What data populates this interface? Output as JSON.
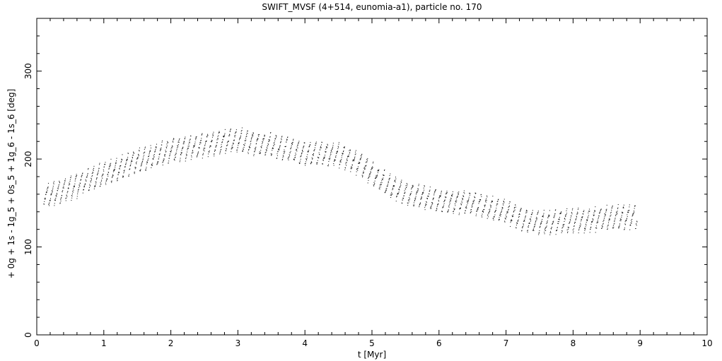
{
  "chart_data": {
    "type": "scatter",
    "title": "SWIFT_MVSF (4+514, eunomia-a1), particle no. 170",
    "xlabel": "t [Myr]",
    "ylabel": "+ 0g + 1s - 1g_5 + 0s_5 + 1g_6 - 1s_6 [deg]",
    "xlim": [
      0,
      10
    ],
    "ylim": [
      0,
      360
    ],
    "xticks": [
      "0",
      "1",
      "2",
      "3",
      "4",
      "5",
      "6",
      "7",
      "8",
      "9",
      "10"
    ],
    "yticks": [
      "0",
      "100",
      "200",
      "300"
    ],
    "grid": false,
    "marker_color": "#000000",
    "trend": {
      "x": [
        0.1,
        0.5,
        1.0,
        1.5,
        2.0,
        2.5,
        3.0,
        3.5,
        4.0,
        4.5,
        4.8,
        5.0,
        5.3,
        5.6,
        6.0,
        6.5,
        7.0,
        7.3,
        7.6,
        8.0,
        8.5,
        8.95
      ],
      "y": [
        157,
        168,
        183,
        198,
        210,
        216,
        222,
        216,
        207,
        205,
        196,
        183,
        168,
        159,
        153,
        150,
        140,
        130,
        128,
        130,
        133,
        135
      ]
    },
    "oscillation_amplitude_deg": 13,
    "oscillation_period_myr": 0.085
  }
}
